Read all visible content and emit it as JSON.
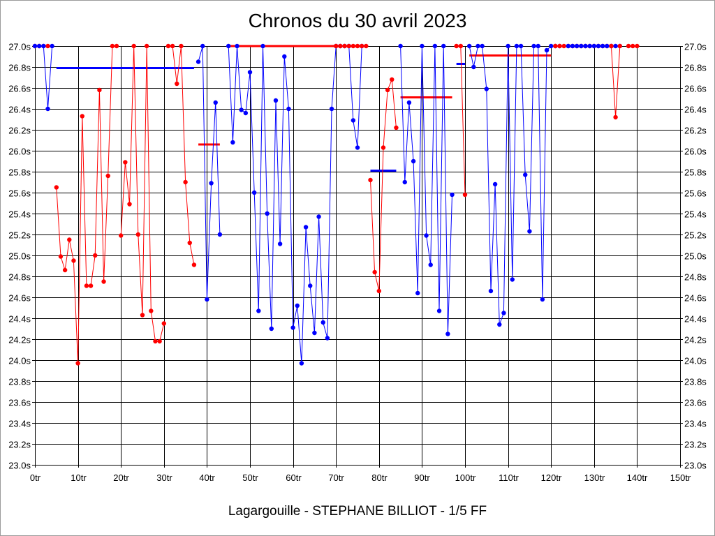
{
  "chart_data": {
    "type": "line",
    "title": "Chronos du 30 avril 2023",
    "subtitle": "Lagargouille - STEPHANE BILLIOT - 1/5 FF",
    "xlabel": "",
    "ylabel": "",
    "xlim": [
      0,
      150
    ],
    "ylim": [
      23.0,
      27.0
    ],
    "x_ticks": [
      0,
      10,
      20,
      30,
      40,
      50,
      60,
      70,
      80,
      90,
      100,
      110,
      120,
      130,
      140,
      150
    ],
    "x_tick_labels": [
      "0tr",
      "10tr",
      "20tr",
      "30tr",
      "40tr",
      "50tr",
      "60tr",
      "70tr",
      "80tr",
      "90tr",
      "100tr",
      "110tr",
      "120tr",
      "130tr",
      "140tr",
      "150tr"
    ],
    "y_ticks": [
      23.0,
      23.2,
      23.4,
      23.6,
      23.8,
      24.0,
      24.2,
      24.4,
      24.6,
      24.8,
      25.0,
      25.2,
      25.4,
      25.6,
      25.8,
      26.0,
      26.2,
      26.4,
      26.6,
      26.8,
      27.0
    ],
    "y_tick_labels": [
      "23.0s",
      "23.2s",
      "23.4s",
      "23.6s",
      "23.8s",
      "24.0s",
      "24.2s",
      "24.4s",
      "24.6s",
      "24.8s",
      "25.0s",
      "25.2s",
      "25.4s",
      "25.6s",
      "25.8s",
      "26.0s",
      "26.2s",
      "26.4s",
      "26.6s",
      "26.8s",
      "27.0s"
    ],
    "grid": true,
    "y_axis_both_sides": true,
    "colors": {
      "red": "#ff0000",
      "blue": "#0000ff",
      "grid": "#000000"
    },
    "segments": [
      {
        "color": "red",
        "points": [
          [
            0,
            27.0
          ],
          [
            1,
            27.0
          ],
          [
            2,
            27.0
          ],
          [
            3,
            27.0
          ]
        ]
      },
      {
        "color": "blue",
        "points": [
          [
            0,
            27.0
          ],
          [
            1,
            27.0
          ],
          [
            2,
            27.0
          ],
          [
            3,
            26.4
          ],
          [
            4,
            27.0
          ]
        ]
      },
      {
        "color": "red",
        "points": [
          [
            5,
            25.65
          ],
          [
            6,
            24.99
          ],
          [
            7,
            24.86
          ],
          [
            8,
            25.15
          ],
          [
            9,
            24.95
          ],
          [
            10,
            23.97
          ],
          [
            11,
            26.33
          ],
          [
            12,
            24.71
          ],
          [
            13,
            24.71
          ],
          [
            14,
            25.0
          ],
          [
            15,
            26.58
          ],
          [
            16,
            24.75
          ],
          [
            17,
            25.76
          ],
          [
            18,
            27.0
          ],
          [
            19,
            27.0
          ]
        ]
      },
      {
        "color": "red",
        "points": [
          [
            20,
            25.19
          ],
          [
            21,
            25.89
          ],
          [
            22,
            25.49
          ],
          [
            23,
            27.0
          ],
          [
            24,
            25.2
          ],
          [
            25,
            24.43
          ],
          [
            26,
            27.0
          ],
          [
            27,
            24.47
          ],
          [
            28,
            24.18
          ],
          [
            29,
            24.18
          ],
          [
            30,
            24.35
          ]
        ]
      },
      {
        "color": "red",
        "points": [
          [
            31,
            27.0
          ],
          [
            32,
            27.0
          ],
          [
            33,
            26.64
          ],
          [
            34,
            27.0
          ],
          [
            35,
            25.7
          ],
          [
            36,
            25.12
          ],
          [
            37,
            24.91
          ]
        ]
      },
      {
        "color": "blue",
        "points": [
          [
            38,
            26.85
          ],
          [
            39,
            27.0
          ],
          [
            40,
            24.58
          ],
          [
            41,
            25.69
          ],
          [
            42,
            26.46
          ],
          [
            43,
            25.2
          ]
        ]
      },
      {
        "color": "blue",
        "points": [
          [
            45,
            27.0
          ],
          [
            46,
            26.08
          ],
          [
            47,
            27.0
          ],
          [
            48,
            26.39
          ],
          [
            49,
            26.36
          ],
          [
            50,
            26.75
          ],
          [
            51,
            25.6
          ],
          [
            52,
            24.47
          ],
          [
            53,
            27.0
          ],
          [
            54,
            25.4
          ],
          [
            55,
            24.3
          ],
          [
            56,
            26.48
          ],
          [
            57,
            25.11
          ],
          [
            58,
            26.9
          ],
          [
            59,
            26.4
          ],
          [
            60,
            24.31
          ],
          [
            61,
            24.52
          ],
          [
            62,
            23.97
          ],
          [
            63,
            25.27
          ],
          [
            64,
            24.71
          ],
          [
            65,
            24.26
          ],
          [
            66,
            25.37
          ],
          [
            67,
            24.36
          ],
          [
            68,
            24.21
          ],
          [
            69,
            26.4
          ],
          [
            70,
            27.0
          ],
          [
            71,
            27.0
          ],
          [
            72,
            27.0
          ],
          [
            73,
            27.0
          ],
          [
            74,
            26.29
          ],
          [
            75,
            26.03
          ],
          [
            76,
            27.0
          ]
        ]
      },
      {
        "color": "red",
        "points": [
          [
            70,
            27.0
          ],
          [
            71,
            27.0
          ],
          [
            72,
            27.0
          ],
          [
            73,
            27.0
          ],
          [
            74,
            27.0
          ],
          [
            75,
            27.0
          ],
          [
            76,
            27.0
          ],
          [
            77,
            27.0
          ]
        ]
      },
      {
        "color": "red",
        "points": [
          [
            78,
            25.72
          ],
          [
            79,
            24.84
          ],
          [
            80,
            24.66
          ],
          [
            81,
            26.03
          ],
          [
            82,
            26.58
          ],
          [
            83,
            26.68
          ],
          [
            84,
            26.22
          ]
        ]
      },
      {
        "color": "blue",
        "points": [
          [
            85,
            27.0
          ],
          [
            86,
            25.7
          ],
          [
            87,
            26.46
          ],
          [
            88,
            25.9
          ],
          [
            89,
            24.64
          ],
          [
            90,
            27.0
          ],
          [
            91,
            25.19
          ],
          [
            92,
            24.91
          ],
          [
            93,
            27.0
          ],
          [
            94,
            24.47
          ],
          [
            95,
            27.0
          ],
          [
            96,
            24.25
          ],
          [
            97,
            25.58
          ]
        ]
      },
      {
        "color": "red",
        "points": [
          [
            98,
            27.0
          ],
          [
            99,
            27.0
          ],
          [
            100,
            25.58
          ]
        ]
      },
      {
        "color": "blue",
        "points": [
          [
            101,
            27.0
          ],
          [
            102,
            26.8
          ],
          [
            103,
            27.0
          ],
          [
            104,
            27.0
          ],
          [
            105,
            26.59
          ],
          [
            106,
            24.66
          ],
          [
            107,
            25.68
          ],
          [
            108,
            24.34
          ],
          [
            109,
            24.45
          ],
          [
            110,
            27.0
          ],
          [
            111,
            24.77
          ],
          [
            112,
            27.0
          ],
          [
            113,
            27.0
          ],
          [
            114,
            25.77
          ],
          [
            115,
            25.23
          ],
          [
            116,
            27.0
          ],
          [
            117,
            27.0
          ],
          [
            118,
            24.58
          ],
          [
            119,
            26.96
          ],
          [
            120,
            27.0
          ],
          [
            121,
            27.0
          ],
          [
            122,
            27.0
          ]
        ]
      },
      {
        "color": "red",
        "points": [
          [
            121,
            27.0
          ],
          [
            122,
            27.0
          ],
          [
            123,
            27.0
          ],
          [
            124,
            27.0
          ],
          [
            125,
            27.0
          ],
          [
            126,
            27.0
          ],
          [
            127,
            27.0
          ],
          [
            128,
            27.0
          ],
          [
            129,
            27.0
          ],
          [
            130,
            27.0
          ],
          [
            131,
            27.0
          ],
          [
            132,
            27.0
          ],
          [
            133,
            27.0
          ],
          [
            134,
            27.0
          ]
        ]
      },
      {
        "color": "blue",
        "points": [
          [
            124,
            27.0
          ],
          [
            125,
            27.0
          ],
          [
            126,
            27.0
          ],
          [
            127,
            27.0
          ],
          [
            128,
            27.0
          ],
          [
            129,
            27.0
          ],
          [
            130,
            27.0
          ],
          [
            131,
            27.0
          ],
          [
            132,
            27.0
          ],
          [
            133,
            27.0
          ],
          [
            134,
            27.0
          ],
          [
            135,
            27.0
          ],
          [
            136,
            27.0
          ]
        ]
      },
      {
        "color": "red",
        "points": [
          [
            134,
            27.0
          ],
          [
            135,
            26.32
          ],
          [
            136,
            27.0
          ]
        ]
      },
      {
        "color": "red",
        "points": [
          [
            138,
            27.0
          ],
          [
            139,
            27.0
          ],
          [
            140,
            27.0
          ]
        ]
      }
    ],
    "averages": [
      {
        "color": "blue",
        "x0": 5,
        "x1": 37,
        "y": 26.79
      },
      {
        "color": "red",
        "x0": 38,
        "x1": 43,
        "y": 26.06
      },
      {
        "color": "red",
        "x0": 45,
        "x1": 77,
        "y": 27.0
      },
      {
        "color": "blue",
        "x0": 78,
        "x1": 84,
        "y": 25.81
      },
      {
        "color": "red",
        "x0": 85,
        "x1": 97,
        "y": 26.51
      },
      {
        "color": "blue",
        "x0": 98,
        "x1": 100,
        "y": 26.83
      },
      {
        "color": "red",
        "x0": 101,
        "x1": 120,
        "y": 26.91
      },
      {
        "color": "blue",
        "x0": 124,
        "x1": 136,
        "y": 27.0
      }
    ]
  }
}
